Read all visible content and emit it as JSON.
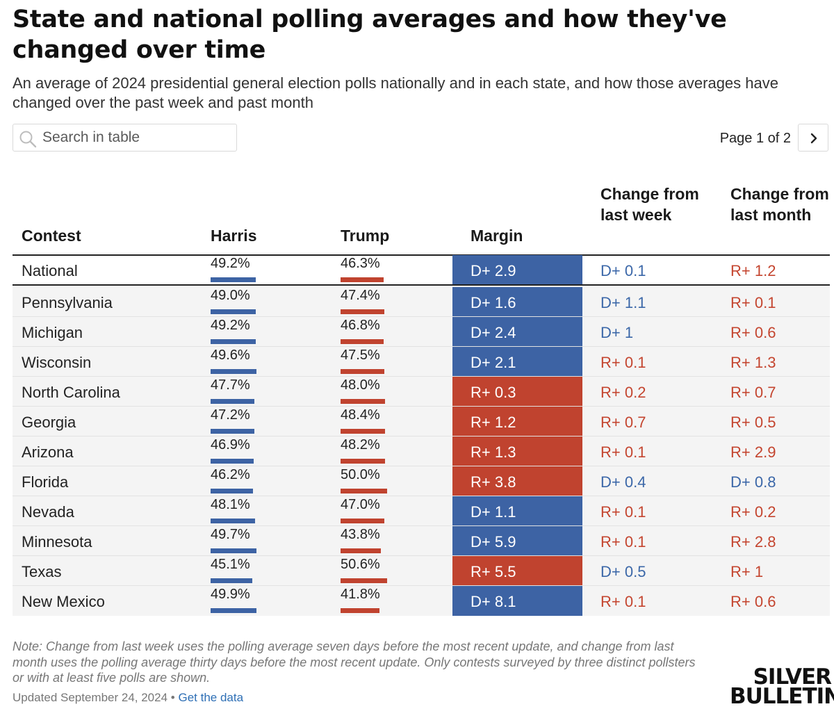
{
  "title": "State and national polling averages and how they've changed over time",
  "subtitle": "An average of 2024 presidential general election polls nationally and in each state, and how those averages have changed over the past week and past month",
  "search": {
    "placeholder": "Search in table",
    "value": "",
    "icon": "search-icon"
  },
  "pager": {
    "label": "Page 1 of 2",
    "next_icon": "chevron-right-icon"
  },
  "colors": {
    "dem": "#3d63a4",
    "rep": "#c0432f",
    "dem_text": "#3b67a8",
    "rep_text": "#c4452f"
  },
  "chart_data": {
    "type": "table",
    "columns": [
      "Contest",
      "Harris",
      "Trump",
      "Margin",
      "Change from last week",
      "Change from last month"
    ],
    "rows": [
      {
        "contest": "National",
        "harris": "49.2%",
        "harris_value": 49.2,
        "trump": "46.3%",
        "trump_value": 46.3,
        "margin": "D+ 2.9",
        "margin_party": "D",
        "week": "D+ 0.1",
        "week_party": "D",
        "month": "R+ 1.2",
        "month_party": "R"
      },
      {
        "contest": "Pennsylvania",
        "harris": "49.0%",
        "harris_value": 49.0,
        "trump": "47.4%",
        "trump_value": 47.4,
        "margin": "D+ 1.6",
        "margin_party": "D",
        "week": "D+ 1.1",
        "week_party": "D",
        "month": "R+ 0.1",
        "month_party": "R"
      },
      {
        "contest": "Michigan",
        "harris": "49.2%",
        "harris_value": 49.2,
        "trump": "46.8%",
        "trump_value": 46.8,
        "margin": "D+ 2.4",
        "margin_party": "D",
        "week": "D+ 1",
        "week_party": "D",
        "month": "R+ 0.6",
        "month_party": "R"
      },
      {
        "contest": "Wisconsin",
        "harris": "49.6%",
        "harris_value": 49.6,
        "trump": "47.5%",
        "trump_value": 47.5,
        "margin": "D+ 2.1",
        "margin_party": "D",
        "week": "R+ 0.1",
        "week_party": "R",
        "month": "R+ 1.3",
        "month_party": "R"
      },
      {
        "contest": "North Carolina",
        "harris": "47.7%",
        "harris_value": 47.7,
        "trump": "48.0%",
        "trump_value": 48.0,
        "margin": "R+ 0.3",
        "margin_party": "R",
        "week": "R+ 0.2",
        "week_party": "R",
        "month": "R+ 0.7",
        "month_party": "R"
      },
      {
        "contest": "Georgia",
        "harris": "47.2%",
        "harris_value": 47.2,
        "trump": "48.4%",
        "trump_value": 48.4,
        "margin": "R+ 1.2",
        "margin_party": "R",
        "week": "R+ 0.7",
        "week_party": "R",
        "month": "R+ 0.5",
        "month_party": "R"
      },
      {
        "contest": "Arizona",
        "harris": "46.9%",
        "harris_value": 46.9,
        "trump": "48.2%",
        "trump_value": 48.2,
        "margin": "R+ 1.3",
        "margin_party": "R",
        "week": "R+ 0.1",
        "week_party": "R",
        "month": "R+ 2.9",
        "month_party": "R"
      },
      {
        "contest": "Florida",
        "harris": "46.2%",
        "harris_value": 46.2,
        "trump": "50.0%",
        "trump_value": 50.0,
        "margin": "R+ 3.8",
        "margin_party": "R",
        "week": "D+ 0.4",
        "week_party": "D",
        "month": "D+ 0.8",
        "month_party": "D"
      },
      {
        "contest": "Nevada",
        "harris": "48.1%",
        "harris_value": 48.1,
        "trump": "47.0%",
        "trump_value": 47.0,
        "margin": "D+ 1.1",
        "margin_party": "D",
        "week": "R+ 0.1",
        "week_party": "R",
        "month": "R+ 0.2",
        "month_party": "R"
      },
      {
        "contest": "Minnesota",
        "harris": "49.7%",
        "harris_value": 49.7,
        "trump": "43.8%",
        "trump_value": 43.8,
        "margin": "D+ 5.9",
        "margin_party": "D",
        "week": "R+ 0.1",
        "week_party": "R",
        "month": "R+ 2.8",
        "month_party": "R"
      },
      {
        "contest": "Texas",
        "harris": "45.1%",
        "harris_value": 45.1,
        "trump": "50.6%",
        "trump_value": 50.6,
        "margin": "R+ 5.5",
        "margin_party": "R",
        "week": "D+ 0.5",
        "week_party": "D",
        "month": "R+ 1",
        "month_party": "R"
      },
      {
        "contest": "New Mexico",
        "harris": "49.9%",
        "harris_value": 49.9,
        "trump": "41.8%",
        "trump_value": 41.8,
        "margin": "D+ 8.1",
        "margin_party": "D",
        "week": "R+ 0.1",
        "week_party": "R",
        "month": "R+ 0.6",
        "month_party": "R"
      }
    ]
  },
  "note": "Note: Change from last week uses the polling average seven days before the most recent update, and change from last month uses the polling average thirty days before the most recent update. Only contests surveyed by three distinct pollsters or with at least five polls are shown.",
  "updated": "Updated September 24, 2024",
  "separator": "•",
  "get_data": "Get the data",
  "logo": {
    "line1": "SILVER",
    "line2": "BULLETIN"
  }
}
